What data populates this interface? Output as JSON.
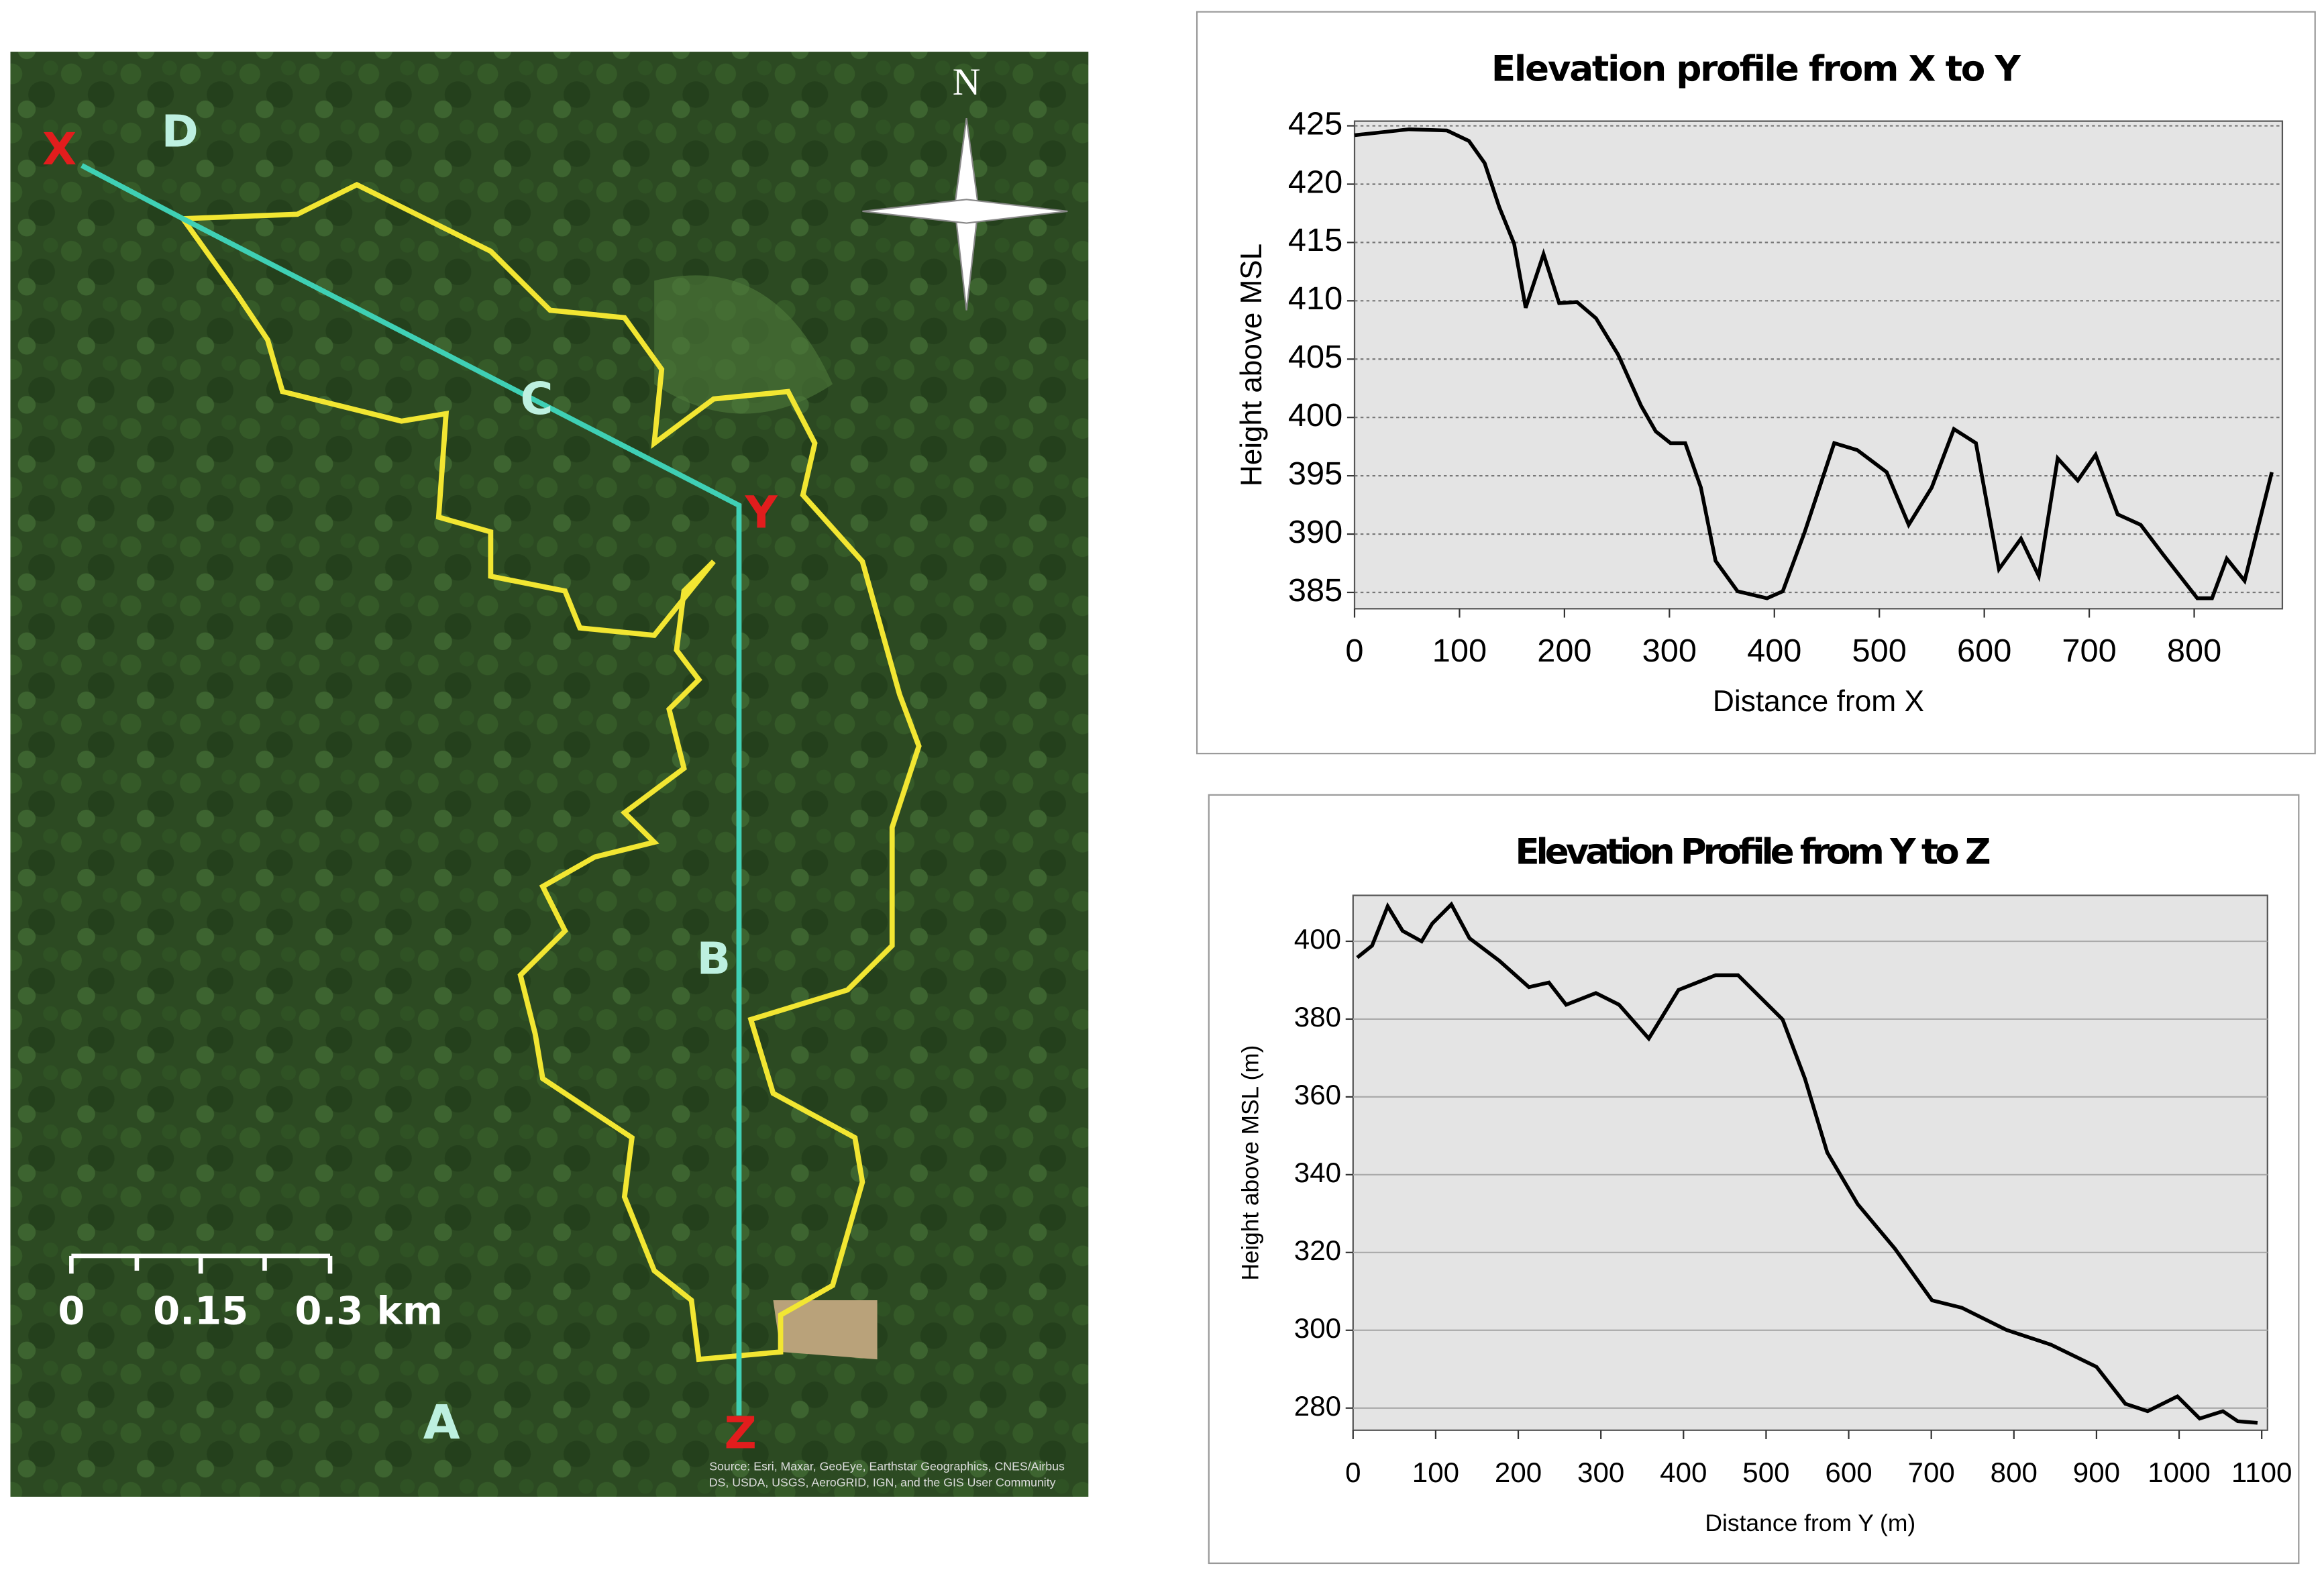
{
  "map": {
    "labels": {
      "X": "X",
      "D": "D",
      "C": "C",
      "Y": "Y",
      "B": "B",
      "Z": "Z",
      "A": "A"
    },
    "north": "N",
    "scale": [
      "0",
      "0.15",
      "0.3 km"
    ],
    "source": [
      "Source: Esri, Maxar, GeoEye, Earthstar Geographics, CNES/Airbus",
      "DS, USDA, USGS, AeroGRID, IGN, and the GIS User Community"
    ]
  },
  "chart_data": [
    {
      "type": "line",
      "title": "Elevation profile from X to Y",
      "xlabel": "Distance from X",
      "ylabel": "Height above MSL",
      "x": [
        0,
        52,
        88,
        109,
        124,
        138,
        152,
        163,
        180,
        195,
        212,
        230,
        251,
        273,
        287,
        301,
        315,
        330,
        344,
        365,
        393,
        408,
        429,
        457,
        479,
        507,
        528,
        550,
        571,
        592,
        614,
        635,
        652,
        670,
        689,
        706,
        727,
        749,
        770,
        803,
        817,
        831,
        848,
        874
      ],
      "values": [
        424.2,
        424.7,
        424.6,
        423.7,
        421.8,
        418,
        414.9,
        409.4,
        414,
        409.8,
        409.9,
        408.5,
        405.4,
        401,
        398.8,
        397.8,
        397.8,
        394,
        387.7,
        385.1,
        384.5,
        385.1,
        390.2,
        397.8,
        397.2,
        395.3,
        390.8,
        394,
        399,
        397.8,
        387,
        389.6,
        386.4,
        396.5,
        394.6,
        396.8,
        391.7,
        390.8,
        388.3,
        384.5,
        384.5,
        387.9,
        386,
        395.3
      ],
      "color": "#000000",
      "xlim": [
        0,
        884
      ],
      "ylim": [
        383.6,
        425.4
      ],
      "xticks": [
        0,
        100,
        200,
        300,
        400,
        500,
        600,
        700,
        800
      ],
      "yticks": [
        385,
        390,
        395,
        400,
        405,
        410,
        415,
        420,
        425
      ],
      "grid": true,
      "grid_style": "dotted"
    },
    {
      "type": "line",
      "title": "Elevation Profile from Y to Z",
      "xlabel": "Distance from Y (m)",
      "ylabel": "Height above MSL (m)",
      "x": [
        5,
        23,
        42,
        60,
        83,
        96,
        119,
        141,
        177,
        213,
        237,
        258,
        294,
        322,
        358,
        394,
        439,
        466,
        520,
        547,
        574,
        611,
        656,
        701,
        737,
        791,
        845,
        900,
        935,
        962,
        998,
        1025,
        1053,
        1071,
        1095
      ],
      "values": [
        395.8,
        398.9,
        409,
        402.7,
        400,
        404.6,
        409.5,
        400.8,
        395,
        388.2,
        389.4,
        383.7,
        386.7,
        383.7,
        375,
        387.5,
        391.3,
        391.3,
        379.9,
        364.7,
        345.7,
        332.4,
        321,
        307.7,
        305.8,
        300.1,
        296.3,
        290.6,
        281.1,
        279.2,
        283,
        277.3,
        279.2,
        276.6,
        276.2
      ],
      "color": "#000000",
      "xlim": [
        0,
        1107
      ],
      "ylim": [
        274.3,
        411.8
      ],
      "xticks": [
        0,
        100,
        200,
        300,
        400,
        500,
        600,
        700,
        800,
        900,
        1000,
        1100
      ],
      "yticks": [
        280,
        300,
        320,
        340,
        360,
        380,
        400
      ],
      "grid": true,
      "grid_style": "solid"
    }
  ]
}
